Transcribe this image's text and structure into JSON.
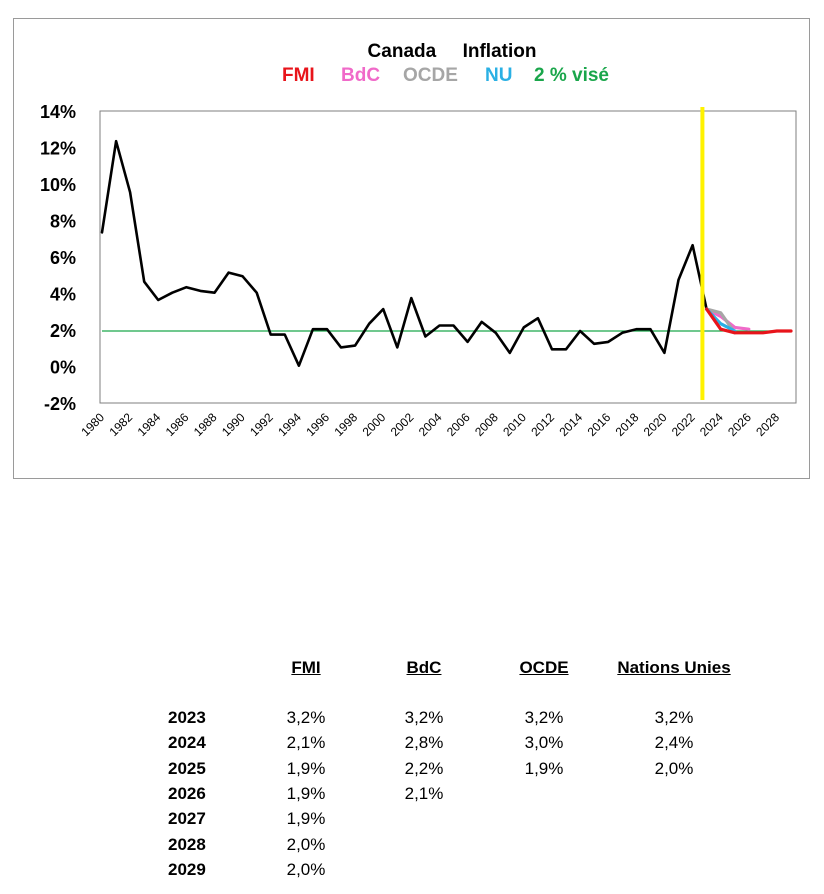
{
  "chart_data": {
    "type": "line",
    "title": "Canada     Inflation",
    "legend": [
      {
        "label": "FMI",
        "color": "#e8141b"
      },
      {
        "label": "BdC",
        "color": "#f06ac9"
      },
      {
        "label": "OCDE",
        "color": "#a6a6a6"
      },
      {
        "label": "NU",
        "color": "#2ab0e4"
      },
      {
        "label": "2 % visé",
        "color": "#1aa64b"
      }
    ],
    "legend_position": "top",
    "ylim": [
      -2,
      14
    ],
    "ytick_labels": [
      "14%",
      "12%",
      "10%",
      "8%",
      "6%",
      "4%",
      "2%",
      "0%",
      "-2%"
    ],
    "ytick_values": [
      14,
      12,
      10,
      8,
      6,
      4,
      2,
      0,
      -2
    ],
    "xlim": [
      1980,
      2029
    ],
    "xtick_labels": [
      "1980",
      "1982",
      "1984",
      "1986",
      "1988",
      "1990",
      "1992",
      "1994",
      "1996",
      "1998",
      "2000",
      "2002",
      "2004",
      "2006",
      "2008",
      "2010",
      "2012",
      "2014",
      "2016",
      "2018",
      "2020",
      "2022",
      "2024",
      "2026",
      "2028"
    ],
    "grid": false,
    "target": {
      "value": 2,
      "color": "#1aa64b"
    },
    "vertical_marker": {
      "x": 2022.7,
      "color": "#fff200"
    },
    "series": [
      {
        "name": "Canada",
        "color": "#000000",
        "x": [
          1980,
          1981,
          1982,
          1983,
          1984,
          1985,
          1986,
          1987,
          1988,
          1989,
          1990,
          1991,
          1992,
          1993,
          1994,
          1995,
          1996,
          1997,
          1998,
          1999,
          2000,
          2001,
          2002,
          2003,
          2004,
          2005,
          2006,
          2007,
          2008,
          2009,
          2010,
          2011,
          2012,
          2013,
          2014,
          2015,
          2016,
          2017,
          2018,
          2019,
          2020,
          2021,
          2022,
          2023
        ],
        "values": [
          7.4,
          12.4,
          9.6,
          4.7,
          3.7,
          4.1,
          4.4,
          4.2,
          4.1,
          5.2,
          5.0,
          4.1,
          1.8,
          1.8,
          0.1,
          2.1,
          2.1,
          1.1,
          1.2,
          2.4,
          3.2,
          1.1,
          3.8,
          1.7,
          2.3,
          2.3,
          1.4,
          2.5,
          1.9,
          0.8,
          2.2,
          2.7,
          1.0,
          1.0,
          2.0,
          1.3,
          1.4,
          1.9,
          2.1,
          2.1,
          0.8,
          4.8,
          6.7,
          3.2
        ]
      },
      {
        "name": "BdC",
        "color": "#f06ac9",
        "x": [
          2023,
          2024,
          2025,
          2026
        ],
        "values": [
          3.2,
          2.8,
          2.2,
          2.1
        ]
      },
      {
        "name": "OCDE",
        "color": "#a6a6a6",
        "x": [
          2023,
          2024,
          2025
        ],
        "values": [
          3.2,
          3.0,
          1.9
        ]
      },
      {
        "name": "NU",
        "color": "#2ab0e4",
        "x": [
          2023,
          2024,
          2025
        ],
        "values": [
          3.2,
          2.4,
          2.0
        ]
      },
      {
        "name": "FMI",
        "color": "#e8141b",
        "x": [
          2023,
          2024,
          2025,
          2026,
          2027,
          2028,
          2029
        ],
        "values": [
          3.2,
          2.1,
          1.9,
          1.9,
          1.9,
          2.0,
          2.0
        ]
      }
    ]
  },
  "table": {
    "headers": [
      "FMI",
      "BdC",
      "OCDE",
      "Nations Unies"
    ],
    "rows": [
      {
        "year": "2023",
        "values": [
          "3,2%",
          "3,2%",
          "3,2%",
          "3,2%"
        ]
      },
      {
        "year": "2024",
        "values": [
          "2,1%",
          "2,8%",
          "3,0%",
          "2,4%"
        ]
      },
      {
        "year": "2025",
        "values": [
          "1,9%",
          "2,2%",
          "1,9%",
          "2,0%"
        ]
      },
      {
        "year": "2026",
        "values": [
          "1,9%",
          "2,1%",
          "",
          ""
        ]
      },
      {
        "year": "2027",
        "values": [
          "1,9%",
          "",
          "",
          ""
        ]
      },
      {
        "year": "2028",
        "values": [
          "2,0%",
          "",
          "",
          ""
        ]
      },
      {
        "year": "2029",
        "values": [
          "2,0%",
          "",
          "",
          ""
        ]
      }
    ]
  }
}
